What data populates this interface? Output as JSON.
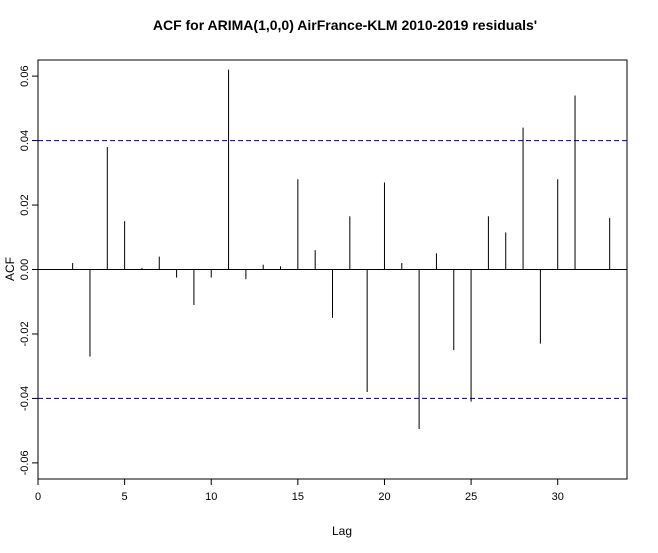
{
  "chart_data": {
    "type": "bar",
    "title": "ACF for ARIMA(1,0,0) AirFrance-KLM 2010-2019 residuals'",
    "xlabel": "Lag",
    "ylabel": "ACF",
    "xlim": [
      0,
      34
    ],
    "ylim": [
      -0.065,
      0.065
    ],
    "x_ticks": [
      0,
      5,
      10,
      15,
      20,
      25,
      30
    ],
    "x_tick_labels": [
      "0",
      "5",
      "10",
      "15",
      "20",
      "25",
      "30"
    ],
    "y_ticks": [
      -0.06,
      -0.04,
      -0.02,
      0.0,
      0.02,
      0.04,
      0.06
    ],
    "y_tick_labels": [
      "-0.06",
      "-0.04",
      "-0.02",
      "0.00",
      "0.02",
      "0.04",
      "0.06"
    ],
    "confidence_bound": 0.04,
    "colors": {
      "lines": "#000000",
      "confidence": "#00008b"
    },
    "lags": [
      2,
      3,
      4,
      5,
      6,
      7,
      8,
      9,
      10,
      11,
      12,
      13,
      14,
      15,
      16,
      17,
      18,
      19,
      20,
      21,
      22,
      23,
      24,
      25,
      26,
      27,
      28,
      29,
      30,
      31,
      33
    ],
    "values": [
      0.002,
      -0.027,
      0.038,
      0.015,
      0.0005,
      0.004,
      -0.0025,
      -0.011,
      -0.0025,
      0.062,
      -0.003,
      0.0015,
      0.001,
      0.028,
      0.006,
      -0.015,
      0.0165,
      -0.038,
      0.027,
      0.002,
      -0.0495,
      0.005,
      -0.025,
      -0.041,
      0.0165,
      0.0115,
      0.044,
      -0.023,
      0.028,
      0.054,
      0.016
    ]
  }
}
